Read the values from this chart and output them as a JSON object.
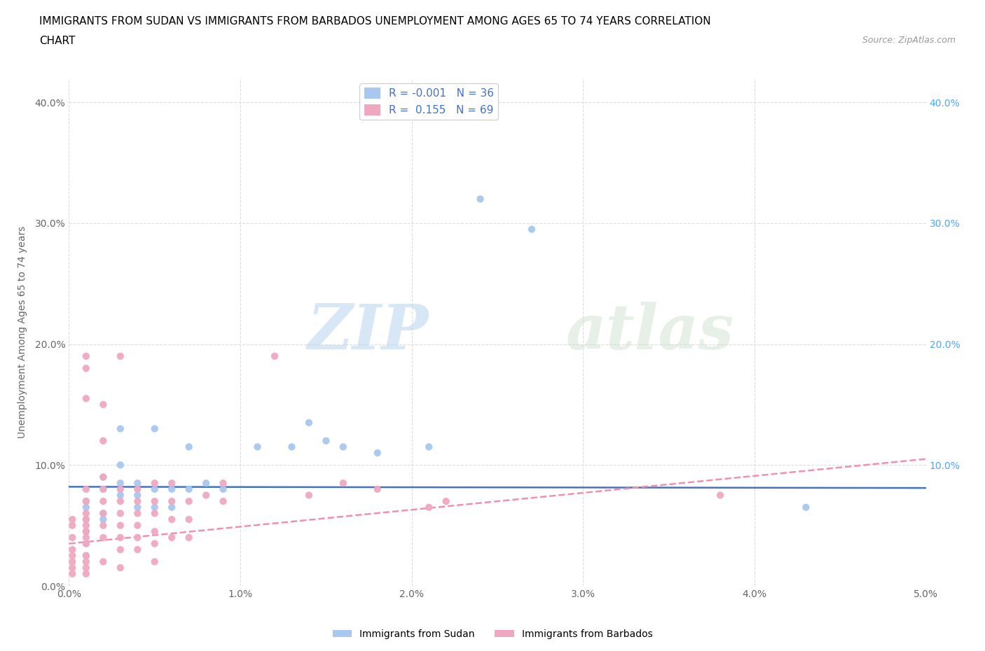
{
  "title_line1": "IMMIGRANTS FROM SUDAN VS IMMIGRANTS FROM BARBADOS UNEMPLOYMENT AMONG AGES 65 TO 74 YEARS CORRELATION",
  "title_line2": "CHART",
  "source": "Source: ZipAtlas.com",
  "ylabel": "Unemployment Among Ages 65 to 74 years",
  "xlim": [
    0.0,
    5.0
  ],
  "ylim": [
    0.0,
    42.0
  ],
  "xticks": [
    0.0,
    1.0,
    2.0,
    3.0,
    4.0,
    5.0
  ],
  "xticklabels": [
    "0.0%",
    "1.0%",
    "2.0%",
    "3.0%",
    "4.0%",
    "5.0%"
  ],
  "yticks": [
    0.0,
    10.0,
    20.0,
    30.0,
    40.0
  ],
  "yticklabels": [
    "0.0%",
    "10.0%",
    "20.0%",
    "30.0%",
    "40.0%"
  ],
  "right_yticklabels": [
    "10.0%",
    "20.0%",
    "30.0%",
    "40.0%"
  ],
  "right_yticks": [
    10.0,
    20.0,
    30.0,
    40.0
  ],
  "sudan_color": "#a8c8f0",
  "barbados_color": "#f0a8c0",
  "sudan_line_color": "#4472c4",
  "barbados_line_color": "#f090b0",
  "sudan_R": -0.001,
  "sudan_N": 36,
  "barbados_R": 0.155,
  "barbados_N": 69,
  "legend_label_sudan": "Immigrants from Sudan",
  "legend_label_barbados": "Immigrants from Barbados",
  "watermark_zip": "ZIP",
  "watermark_atlas": "atlas",
  "background_color": "#ffffff",
  "grid_color": "#dddddd",
  "sudan_line_y0": 8.2,
  "sudan_line_y1": 8.1,
  "barbados_line_y0": 3.5,
  "barbados_line_y1": 10.5,
  "sudan_points": [
    [
      0.1,
      6.5
    ],
    [
      0.1,
      4.5
    ],
    [
      0.1,
      5.5
    ],
    [
      0.1,
      3.5
    ],
    [
      0.1,
      2.5
    ],
    [
      0.1,
      7.0
    ],
    [
      0.2,
      8.0
    ],
    [
      0.2,
      6.0
    ],
    [
      0.2,
      9.0
    ],
    [
      0.2,
      5.5
    ],
    [
      0.3,
      13.0
    ],
    [
      0.3,
      10.0
    ],
    [
      0.3,
      8.5
    ],
    [
      0.3,
      7.5
    ],
    [
      0.4,
      8.5
    ],
    [
      0.4,
      7.5
    ],
    [
      0.4,
      6.5
    ],
    [
      0.5,
      13.0
    ],
    [
      0.5,
      8.0
    ],
    [
      0.5,
      6.5
    ],
    [
      0.6,
      8.0
    ],
    [
      0.6,
      6.5
    ],
    [
      0.7,
      8.0
    ],
    [
      0.7,
      11.5
    ],
    [
      0.8,
      8.5
    ],
    [
      0.9,
      8.0
    ],
    [
      1.1,
      11.5
    ],
    [
      1.3,
      11.5
    ],
    [
      1.4,
      13.5
    ],
    [
      1.5,
      12.0
    ],
    [
      1.6,
      11.5
    ],
    [
      1.8,
      11.0
    ],
    [
      2.1,
      11.5
    ],
    [
      2.4,
      32.0
    ],
    [
      2.7,
      29.5
    ],
    [
      4.3,
      6.5
    ]
  ],
  "barbados_points": [
    [
      0.02,
      5.5
    ],
    [
      0.02,
      5.0
    ],
    [
      0.02,
      4.0
    ],
    [
      0.02,
      3.0
    ],
    [
      0.02,
      2.5
    ],
    [
      0.02,
      2.0
    ],
    [
      0.02,
      1.5
    ],
    [
      0.02,
      1.0
    ],
    [
      0.1,
      19.0
    ],
    [
      0.1,
      18.0
    ],
    [
      0.1,
      15.5
    ],
    [
      0.1,
      8.0
    ],
    [
      0.1,
      7.0
    ],
    [
      0.1,
      6.0
    ],
    [
      0.1,
      5.5
    ],
    [
      0.1,
      5.0
    ],
    [
      0.1,
      4.5
    ],
    [
      0.1,
      4.0
    ],
    [
      0.1,
      3.5
    ],
    [
      0.1,
      2.5
    ],
    [
      0.1,
      2.0
    ],
    [
      0.1,
      1.5
    ],
    [
      0.1,
      1.0
    ],
    [
      0.2,
      15.0
    ],
    [
      0.2,
      12.0
    ],
    [
      0.2,
      9.0
    ],
    [
      0.2,
      8.0
    ],
    [
      0.2,
      7.0
    ],
    [
      0.2,
      6.0
    ],
    [
      0.2,
      5.0
    ],
    [
      0.2,
      4.0
    ],
    [
      0.2,
      2.0
    ],
    [
      0.3,
      19.0
    ],
    [
      0.3,
      8.0
    ],
    [
      0.3,
      7.0
    ],
    [
      0.3,
      6.0
    ],
    [
      0.3,
      5.0
    ],
    [
      0.3,
      4.0
    ],
    [
      0.3,
      3.0
    ],
    [
      0.3,
      1.5
    ],
    [
      0.4,
      8.0
    ],
    [
      0.4,
      7.0
    ],
    [
      0.4,
      6.0
    ],
    [
      0.4,
      5.0
    ],
    [
      0.4,
      4.0
    ],
    [
      0.4,
      3.0
    ],
    [
      0.5,
      8.5
    ],
    [
      0.5,
      7.0
    ],
    [
      0.5,
      6.0
    ],
    [
      0.5,
      4.5
    ],
    [
      0.5,
      3.5
    ],
    [
      0.5,
      2.0
    ],
    [
      0.6,
      8.5
    ],
    [
      0.6,
      7.0
    ],
    [
      0.6,
      5.5
    ],
    [
      0.6,
      4.0
    ],
    [
      0.7,
      7.0
    ],
    [
      0.7,
      5.5
    ],
    [
      0.7,
      4.0
    ],
    [
      0.8,
      7.5
    ],
    [
      0.9,
      8.5
    ],
    [
      0.9,
      7.0
    ],
    [
      1.2,
      19.0
    ],
    [
      1.4,
      7.5
    ],
    [
      1.6,
      8.5
    ],
    [
      1.8,
      8.0
    ],
    [
      2.1,
      6.5
    ],
    [
      2.2,
      7.0
    ],
    [
      3.8,
      7.5
    ]
  ]
}
